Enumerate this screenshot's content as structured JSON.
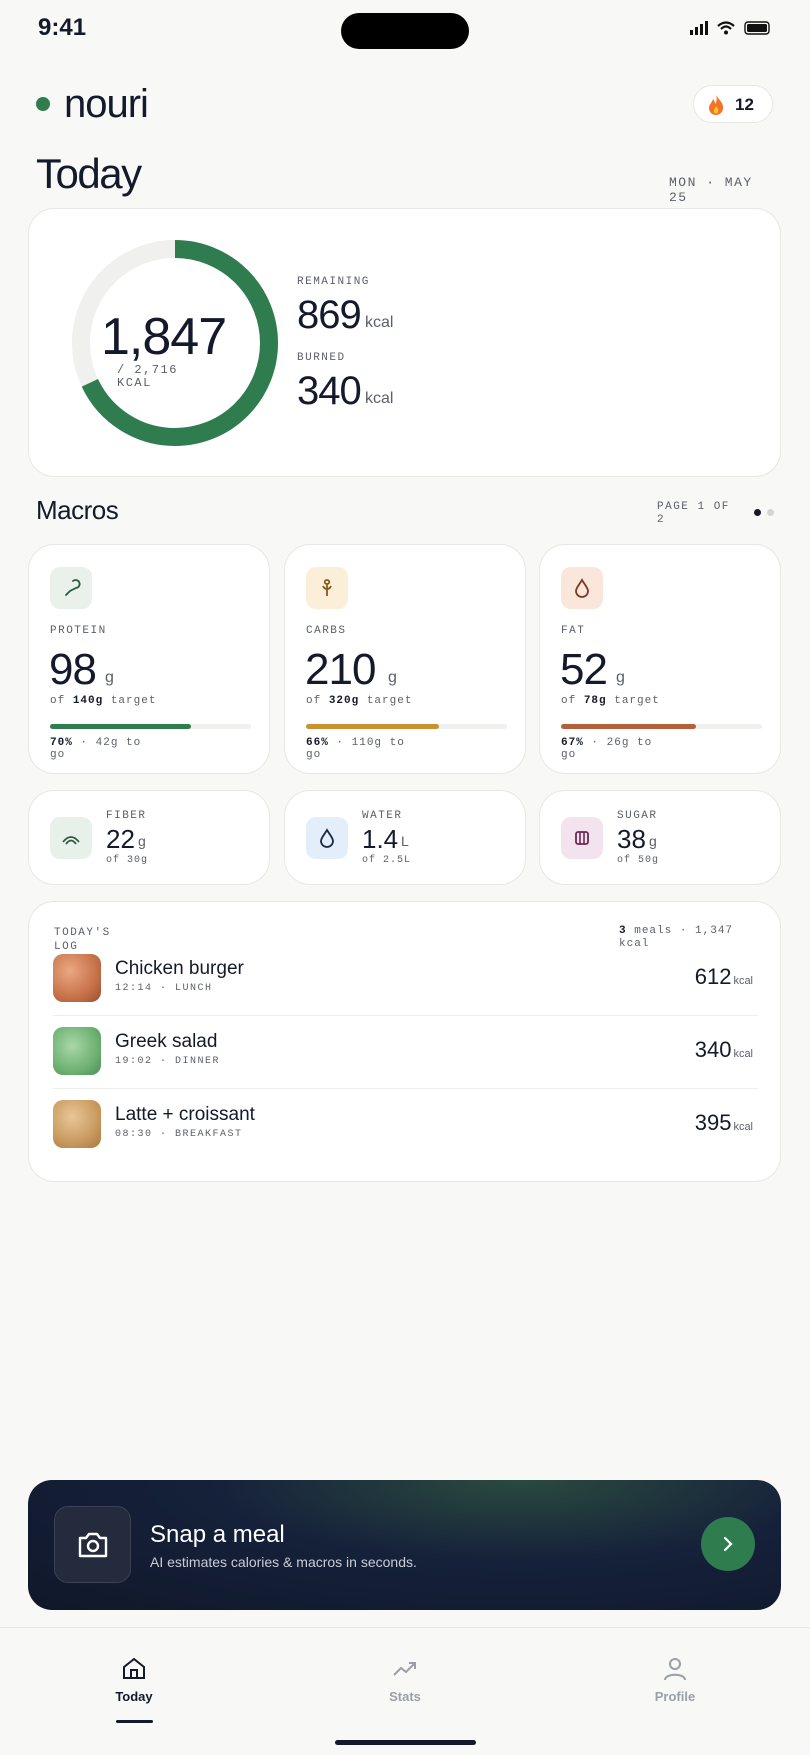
{
  "status_bar": {
    "time": "9:41"
  },
  "header": {
    "brand": "nouri",
    "streak": "12"
  },
  "today": {
    "title": "Today",
    "date": "MON · MAY 25",
    "consumed": "1,847",
    "target": "/ 2,716",
    "unit": "KCAL",
    "remaining_label": "REMAINING",
    "remaining": "869",
    "remaining_unit": "kcal",
    "burned_label": "BURNED",
    "burned": "340",
    "burned_unit": "kcal"
  },
  "macros": {
    "title": "Macros",
    "page": "PAGE 1 OF 2",
    "cards": [
      {
        "label": "PROTEIN",
        "value": "98",
        "unit": "g",
        "target_prefix": "of",
        "target": "140g",
        "target_suffix": "target",
        "percent": "70%",
        "remaining": "· 42g to go"
      },
      {
        "label": "CARBS",
        "value": "210",
        "unit": "g",
        "target_prefix": "of",
        "target": "320g",
        "target_suffix": "target",
        "percent": "66%",
        "remaining": "· 110g to go"
      },
      {
        "label": "FAT",
        "value": "52",
        "unit": "g",
        "target_prefix": "of",
        "target": "78g",
        "target_suffix": "target",
        "percent": "67%",
        "remaining": "· 26g to go"
      }
    ],
    "minor": [
      {
        "label": "FIBER",
        "value": "22",
        "unit": "g",
        "target": "of 30g"
      },
      {
        "label": "WATER",
        "value": "1.4",
        "unit": "L",
        "target": "of 2.5L"
      },
      {
        "label": "SUGAR",
        "value": "38",
        "unit": "g",
        "target": "of 50g"
      }
    ]
  },
  "log": {
    "title": "TODAY'S LOG",
    "count": "3",
    "summary": "meals · 1,347 kcal",
    "items": [
      {
        "name": "Chicken burger",
        "time": "12:14 · LUNCH",
        "kcal": "612",
        "unit": "kcal"
      },
      {
        "name": "Greek salad",
        "time": "19:02 · DINNER",
        "kcal": "340",
        "unit": "kcal"
      },
      {
        "name": "Latte + croissant",
        "time": "08:30 · BREAKFAST",
        "kcal": "395",
        "unit": "kcal"
      }
    ]
  },
  "cta": {
    "title": "Snap a meal",
    "subtitle": "AI estimates calories & macros in seconds."
  },
  "nav": [
    "Today",
    "Stats",
    "Profile"
  ]
}
